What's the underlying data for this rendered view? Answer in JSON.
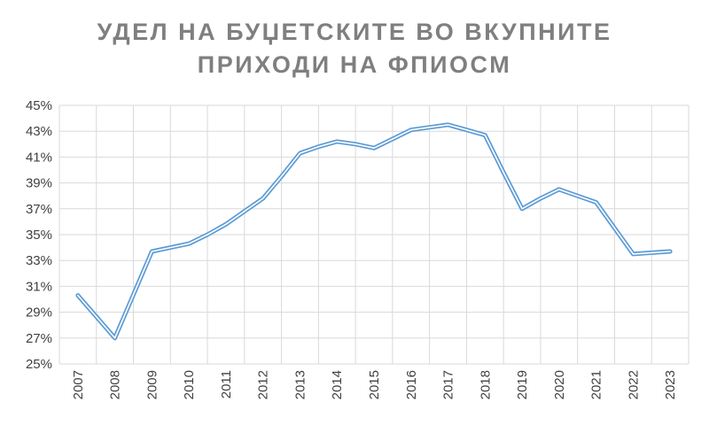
{
  "title_lines": [
    "УДЕЛ НА БУЏЕТСКИТЕ ВО ВКУПНИТЕ",
    "ПРИХОДИ НА ФПИОСМ"
  ],
  "colors": {
    "line": "#5b9bd5",
    "grid": "#d9d9d9",
    "title": "#7f7f7f",
    "ticks": "#404040"
  },
  "chart_data": {
    "type": "line",
    "title": "УДЕЛ НА БУЏЕТСКИТЕ ВО ВКУПНИТЕ ПРИХОДИ НА ФПИОСМ",
    "x_tick_labels": [
      "2007",
      "2008",
      "2009",
      "2010",
      "2011",
      "2012",
      "2013",
      "2014",
      "2015",
      "2016",
      "2017",
      "2018",
      "2019",
      "2020",
      "2021",
      "2022",
      "2023"
    ],
    "y_tick_labels": [
      "25%",
      "27%",
      "29%",
      "31%",
      "33%",
      "35%",
      "37%",
      "39%",
      "41%",
      "43%",
      "45%"
    ],
    "ylim": [
      25,
      45
    ],
    "y_unit": "%",
    "grid": true,
    "legend": "none",
    "series": [
      {
        "x": [
          2007.0,
          2008.0,
          2009.0,
          2009.5,
          2010.0,
          2010.5,
          2011.0,
          2011.5,
          2012.0,
          2012.5,
          2013.0,
          2013.5,
          2014.0,
          2014.5,
          2015.0,
          2015.5,
          2016.0,
          2016.5,
          2017.0,
          2017.5,
          2018.0,
          2018.5,
          2019.0,
          2019.5,
          2020.0,
          2020.5,
          2021.0,
          2021.5,
          2022.0,
          2022.5,
          2023.0
        ],
        "values": [
          30.3,
          27.0,
          33.7,
          34.0,
          34.3,
          35.0,
          35.8,
          36.8,
          37.8,
          39.5,
          41.3,
          41.8,
          42.2,
          42.0,
          41.7,
          42.4,
          43.1,
          43.3,
          43.5,
          43.1,
          42.7,
          39.8,
          37.0,
          37.8,
          38.5,
          38.0,
          37.5,
          35.5,
          33.5,
          33.6,
          33.7
        ]
      }
    ]
  }
}
